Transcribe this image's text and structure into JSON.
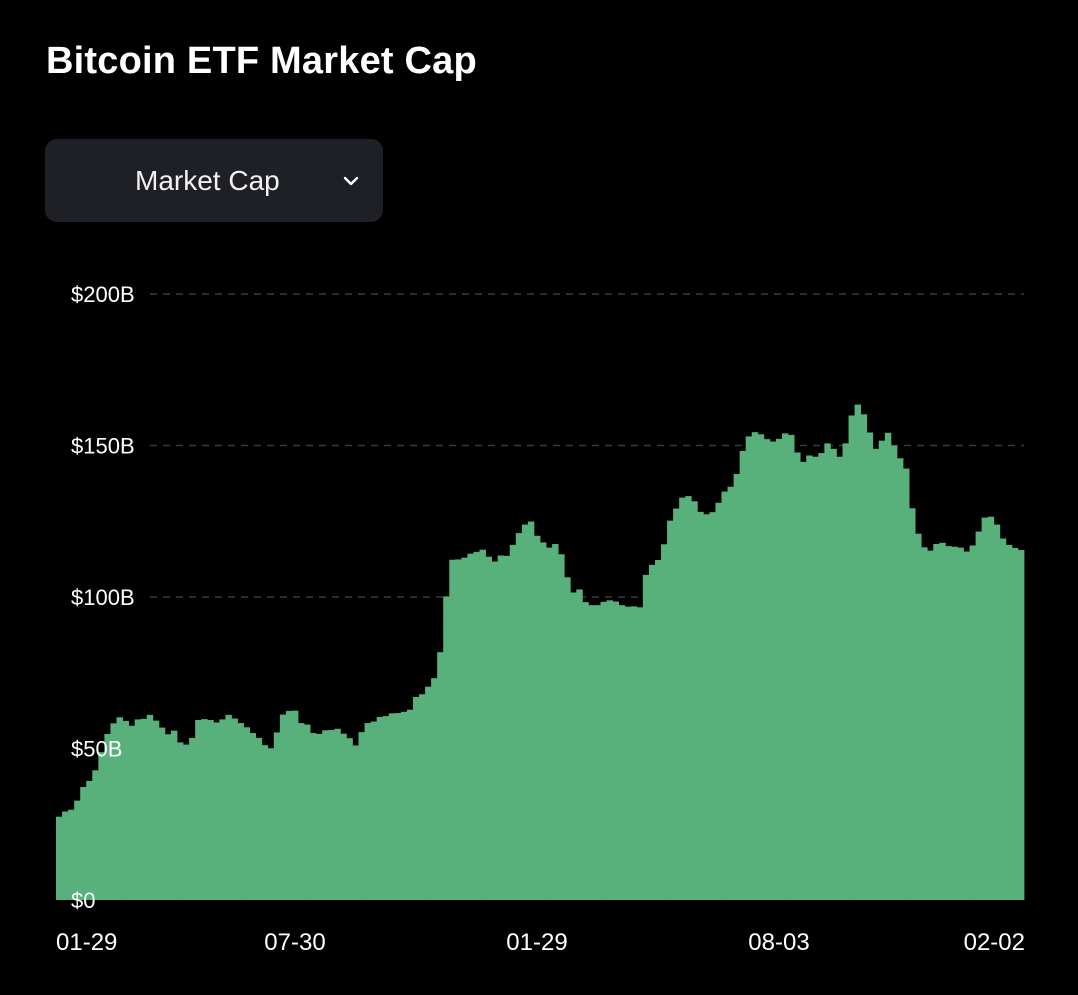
{
  "header": {
    "title": "Bitcoin ETF Market Cap"
  },
  "metric_select": {
    "selected": "Market Cap",
    "icon": "chevron-down-icon"
  },
  "colors": {
    "bar": "#58b07b",
    "bar_stroke": "#4fa570",
    "grid": "#3a3a3a",
    "background": "#000000"
  },
  "chart_data": {
    "type": "bar",
    "title": "Bitcoin ETF Market Cap",
    "xlabel": "",
    "ylabel": "",
    "unit": "B USD",
    "ylim": [
      0,
      200
    ],
    "y_ticks": [
      {
        "value": 0,
        "label": "$0"
      },
      {
        "value": 50,
        "label": "$50B"
      },
      {
        "value": 100,
        "label": "$100B"
      },
      {
        "value": 150,
        "label": "$150B"
      },
      {
        "value": 200,
        "label": "$200B"
      }
    ],
    "x_ticks": [
      {
        "index": 0,
        "label": "01-29"
      },
      {
        "index": 39,
        "label": "07-30"
      },
      {
        "index": 79,
        "label": "01-29"
      },
      {
        "index": 119,
        "label": "08-03"
      },
      {
        "index": 159,
        "label": "02-02"
      }
    ],
    "grid": "horizontal-dashed",
    "values": [
      27.5,
      29.2,
      29.8,
      32.8,
      37.3,
      39.3,
      42.8,
      48.8,
      54.8,
      58.3,
      60.3,
      59.1,
      57.5,
      59.6,
      59.8,
      61.1,
      59.2,
      56.9,
      54.7,
      55.9,
      52.0,
      51.3,
      53.5,
      59.4,
      59.7,
      59.4,
      58.6,
      59.6,
      61.1,
      59.9,
      58.4,
      57.0,
      55.1,
      53.5,
      51.1,
      50.0,
      55.3,
      61.2,
      62.4,
      62.5,
      58.4,
      57.9,
      55.1,
      54.8,
      56.0,
      56.1,
      56.5,
      54.9,
      53.4,
      51.0,
      55.4,
      58.4,
      58.9,
      60.4,
      60.7,
      61.6,
      61.7,
      62.1,
      62.8,
      67.0,
      67.9,
      70.4,
      73.2,
      81.8,
      100.2,
      112.3,
      112.4,
      113.0,
      114.3,
      114.9,
      115.6,
      113.3,
      111.7,
      113.7,
      113.6,
      117.2,
      121.1,
      123.9,
      124.9,
      120.2,
      118.0,
      116.3,
      117.5,
      114.1,
      106.5,
      101.5,
      102.5,
      98.3,
      97.3,
      97.3,
      98.4,
      98.9,
      98.5,
      97.3,
      96.8,
      96.9,
      96.6,
      107.3,
      110.6,
      112.2,
      117.4,
      125.2,
      129.2,
      132.8,
      133.3,
      131.6,
      128.1,
      127.3,
      128.0,
      131.1,
      134.8,
      136.4,
      140.6,
      148.2,
      153.0,
      154.4,
      153.7,
      152.1,
      151.3,
      152.2,
      154.0,
      153.5,
      147.7,
      144.6,
      146.7,
      146.3,
      147.5,
      150.7,
      148.9,
      146.3,
      150.7,
      159.9,
      163.5,
      160.3,
      154.3,
      148.9,
      151.6,
      154.2,
      150.0,
      145.8,
      142.4,
      129.3,
      120.9,
      116.4,
      115.3,
      117.5,
      117.9,
      116.8,
      116.6,
      116.3,
      115.0,
      117.0,
      121.6,
      126.2,
      126.5,
      123.9,
      119.3,
      117.2,
      116.2,
      115.5
    ]
  }
}
